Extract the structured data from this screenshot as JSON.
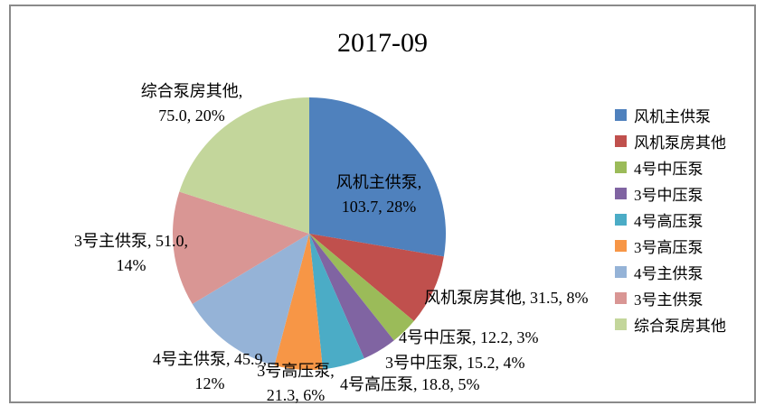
{
  "chart_data": {
    "type": "pie",
    "title": "2017-09",
    "legend_position": "right",
    "start_angle_deg": 0,
    "direction": "clockwise",
    "slices": [
      {
        "name": "风机主供泵",
        "value": 103.7,
        "pct": "28%",
        "color": "#4F81BD",
        "label_lines": [
          "风机主供泵,",
          "103.7, 28%"
        ]
      },
      {
        "name": "风机泵房其他",
        "value": 31.5,
        "pct": "8%",
        "color": "#C0504D",
        "label_lines": [
          "风机泵房其他, 31.5, 8%"
        ]
      },
      {
        "name": "4号中压泵",
        "value": 12.2,
        "pct": "3%",
        "color": "#9BBB59",
        "label_lines": [
          "4号中压泵, 12.2, 3%"
        ]
      },
      {
        "name": "3号中压泵",
        "value": 15.2,
        "pct": "4%",
        "color": "#8064A2",
        "label_lines": [
          "3号中压泵, 15.2, 4%"
        ]
      },
      {
        "name": "4号高压泵",
        "value": 18.8,
        "pct": "5%",
        "color": "#4BACC6",
        "label_lines": [
          "4号高压泵, 18.8, 5%"
        ]
      },
      {
        "name": "3号高压泵",
        "value": 21.3,
        "pct": "6%",
        "color": "#F79646",
        "label_lines": [
          "3号高压泵,",
          "21.3, 6%"
        ]
      },
      {
        "name": "4号主供泵",
        "value": 45.9,
        "pct": "12%",
        "color": "#95B3D7",
        "label_lines": [
          "4号主供泵, 45.9,",
          "12%"
        ]
      },
      {
        "name": "3号主供泵",
        "value": 51.0,
        "pct": "14%",
        "color": "#D99694",
        "label_lines": [
          "3号主供泵, 51.0,",
          "14%"
        ]
      },
      {
        "name": "综合泵房其他",
        "value": 75.0,
        "pct": "20%",
        "color": "#C3D69B",
        "label_lines": [
          "综合泵房其他,",
          "75.0, 20%"
        ]
      }
    ]
  },
  "frame": {
    "border_color": "#8a8a8a",
    "background": "#ffffff"
  }
}
